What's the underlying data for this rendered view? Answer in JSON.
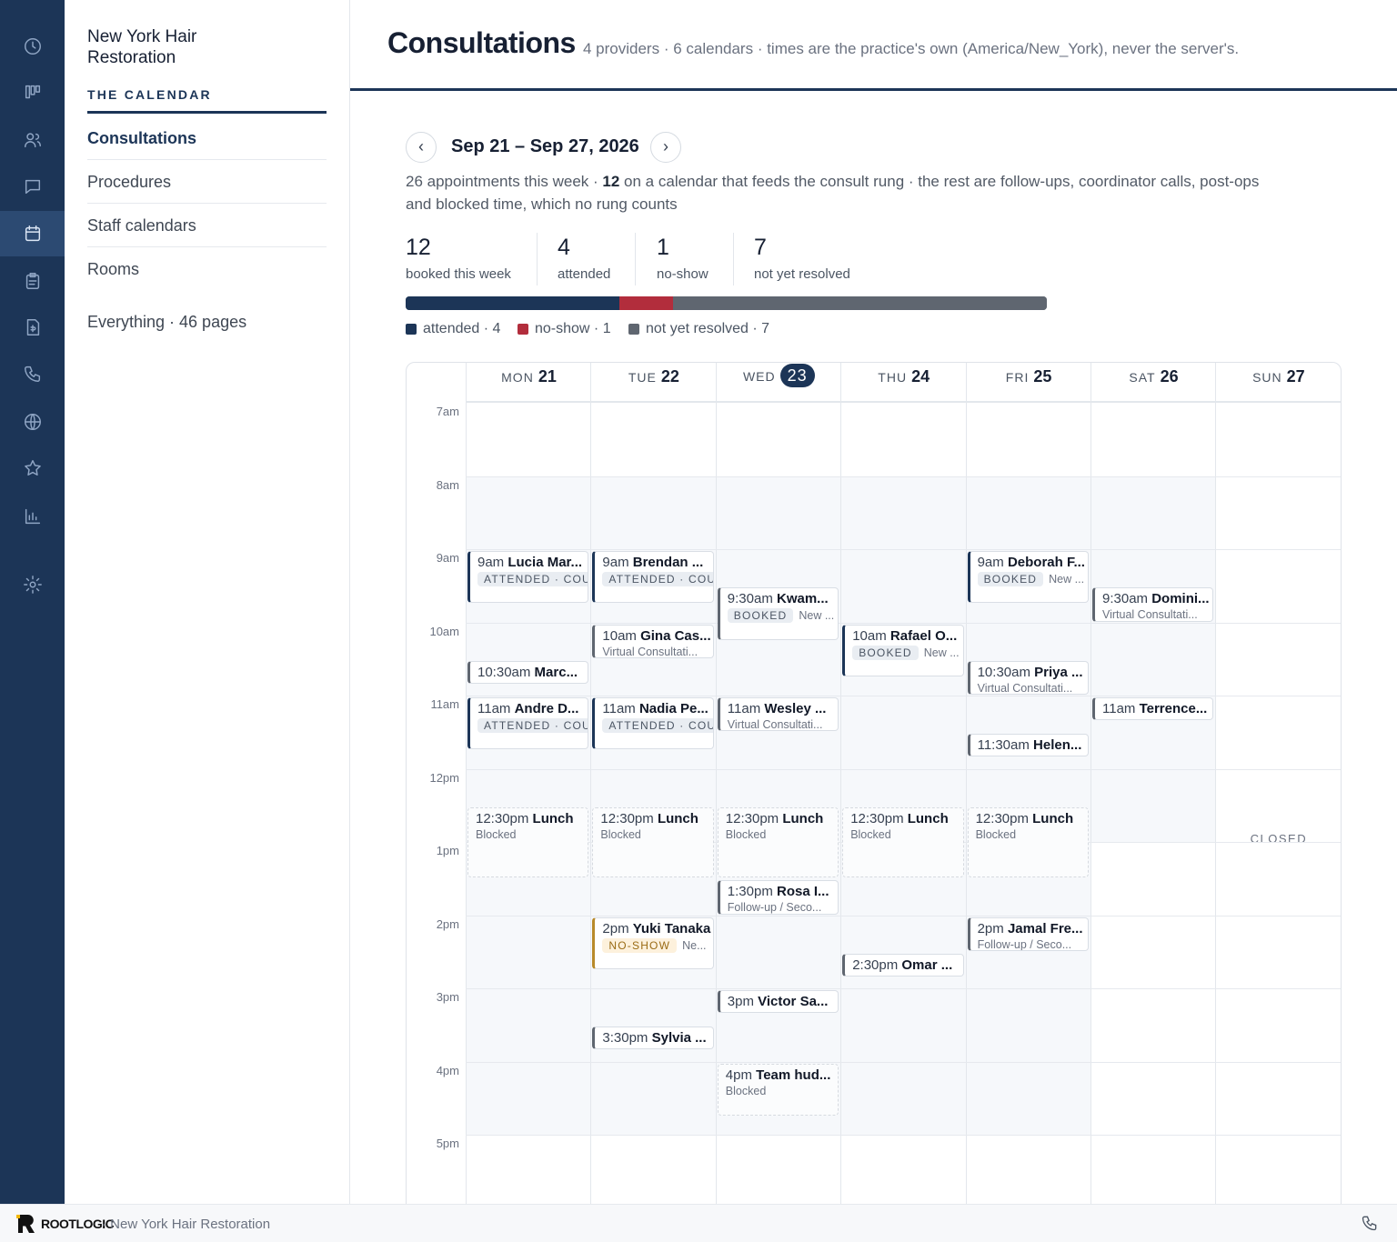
{
  "sidebar": {
    "org_name": "New York Hair Restoration",
    "section_label": "THE CALENDAR",
    "items": [
      {
        "label": "Consultations",
        "active": true
      },
      {
        "label": "Procedures"
      },
      {
        "label": "Staff calendars"
      },
      {
        "label": "Rooms"
      }
    ],
    "all_pages": "Everything · 46 pages"
  },
  "rail_icons": [
    "clock-icon",
    "kanban-icon",
    "users-icon",
    "chat-icon",
    "calendar-icon",
    "clipboard-icon",
    "invoice-icon",
    "phone-icon",
    "globe-icon",
    "star-icon",
    "chart-icon",
    "settings-icon"
  ],
  "header": {
    "title": "Consultations",
    "subtitle": "4 providers · 6 calendars · times are the practice's own (America/New_York), never the server's."
  },
  "week": {
    "prev": "‹",
    "next": "›",
    "range": "Sep 21 – Sep 27, 2026",
    "summary_a": "26 appointments this week · ",
    "summary_b": "12",
    "summary_c": " on a calendar that feeds the consult rung · the rest are follow-ups, coordinator calls, post-ops and blocked time, which no rung counts"
  },
  "stats": [
    {
      "value": "12",
      "label": "booked this week"
    },
    {
      "value": "4",
      "label": "attended"
    },
    {
      "value": "1",
      "label": "no-show"
    },
    {
      "value": "7",
      "label": "not yet resolved"
    }
  ],
  "progress": {
    "segments": [
      {
        "name": "attended",
        "count": 4,
        "color": "#1c3557"
      },
      {
        "name": "no-show",
        "count": 1,
        "color": "#b22d3c"
      },
      {
        "name": "not yet resolved",
        "count": 7,
        "color": "#5f6670"
      }
    ],
    "legend": [
      "attended · 4",
      "no-show · 1",
      "not yet resolved · 7"
    ]
  },
  "calendar": {
    "time_labels": [
      "7am",
      "8am",
      "9am",
      "10am",
      "11am",
      "12pm",
      "1pm",
      "2pm",
      "3pm",
      "4pm",
      "5pm"
    ],
    "days": [
      {
        "dow": "MON",
        "date": "21"
      },
      {
        "dow": "TUE",
        "date": "22"
      },
      {
        "dow": "WED",
        "date": "23",
        "today": true
      },
      {
        "dow": "THU",
        "date": "24"
      },
      {
        "dow": "FRI",
        "date": "25"
      },
      {
        "dow": "SAT",
        "date": "26"
      },
      {
        "dow": "SUN",
        "date": "27",
        "closed_label": "CLOSED"
      }
    ],
    "events": [
      {
        "day": 0,
        "start": 9,
        "end": 9.75,
        "time": "9am",
        "name": "Lucia Mar...",
        "badge": "ATTENDED · COUN",
        "style": "strong"
      },
      {
        "day": 0,
        "start": 10.5,
        "end": 10.85,
        "time": "10:30am",
        "name": "Marc...",
        "style": "plain"
      },
      {
        "day": 0,
        "start": 11,
        "end": 11.75,
        "time": "11am",
        "name": "Andre D...",
        "badge": "ATTENDED · COUN",
        "style": "strong"
      },
      {
        "day": 0,
        "start": 12.5,
        "end": 13.5,
        "time": "12:30pm",
        "name": "Lunch",
        "sub": "Blocked",
        "style": "blocked"
      },
      {
        "day": 1,
        "start": 9,
        "end": 9.75,
        "time": "9am",
        "name": "Brendan ...",
        "badge": "ATTENDED · COUN",
        "style": "strong"
      },
      {
        "day": 1,
        "start": 10,
        "end": 10.5,
        "time": "10am",
        "name": "Gina Cas...",
        "sub": "Virtual Consultati...",
        "style": "plain"
      },
      {
        "day": 1,
        "start": 11,
        "end": 11.75,
        "time": "11am",
        "name": "Nadia Pe...",
        "badge": "ATTENDED · COUN",
        "style": "strong"
      },
      {
        "day": 1,
        "start": 12.5,
        "end": 13.5,
        "time": "12:30pm",
        "name": "Lunch",
        "sub": "Blocked",
        "style": "blocked"
      },
      {
        "day": 1,
        "start": 14,
        "end": 14.75,
        "time": "2pm",
        "name": "Yuki Tanaka",
        "badge": "NO-SHOW",
        "extra": "Ne...",
        "style": "noshow"
      },
      {
        "day": 1,
        "start": 15.5,
        "end": 15.85,
        "time": "3:30pm",
        "name": "Sylvia ...",
        "style": "plain"
      },
      {
        "day": 2,
        "start": 9.5,
        "end": 10.25,
        "time": "9:30am",
        "name": "Kwam...",
        "badge": "BOOKED",
        "extra": "New ...",
        "style": "plain"
      },
      {
        "day": 2,
        "start": 11,
        "end": 11.5,
        "time": "11am",
        "name": "Wesley ...",
        "sub": "Virtual Consultati...",
        "style": "plain"
      },
      {
        "day": 2,
        "start": 12.5,
        "end": 13.5,
        "time": "12:30pm",
        "name": "Lunch",
        "sub": "Blocked",
        "style": "blocked"
      },
      {
        "day": 2,
        "start": 13.5,
        "end": 14,
        "time": "1:30pm",
        "name": "Rosa I...",
        "sub": "Follow-up / Seco...",
        "style": "plain"
      },
      {
        "day": 2,
        "start": 15,
        "end": 15.35,
        "time": "3pm",
        "name": "Victor Sa...",
        "style": "plain"
      },
      {
        "day": 2,
        "start": 16,
        "end": 16.75,
        "time": "4pm",
        "name": "Team hud...",
        "sub": "Blocked",
        "style": "blocked"
      },
      {
        "day": 3,
        "start": 10,
        "end": 10.75,
        "time": "10am",
        "name": "Rafael O...",
        "badge": "BOOKED",
        "extra": "New ...",
        "style": "strong"
      },
      {
        "day": 3,
        "start": 12.5,
        "end": 13.5,
        "time": "12:30pm",
        "name": "Lunch",
        "sub": "Blocked",
        "style": "blocked"
      },
      {
        "day": 3,
        "start": 14.5,
        "end": 14.85,
        "time": "2:30pm",
        "name": "Omar ...",
        "style": "plain"
      },
      {
        "day": 4,
        "start": 9,
        "end": 9.75,
        "time": "9am",
        "name": "Deborah F...",
        "badge": "BOOKED",
        "extra": "New ...",
        "style": "strong"
      },
      {
        "day": 4,
        "start": 10.5,
        "end": 11,
        "time": "10:30am",
        "name": "Priya ...",
        "sub": "Virtual Consultati...",
        "style": "plain"
      },
      {
        "day": 4,
        "start": 11.5,
        "end": 11.85,
        "time": "11:30am",
        "name": "Helen...",
        "style": "plain"
      },
      {
        "day": 4,
        "start": 12.5,
        "end": 13.5,
        "time": "12:30pm",
        "name": "Lunch",
        "sub": "Blocked",
        "style": "blocked"
      },
      {
        "day": 4,
        "start": 14,
        "end": 14.5,
        "time": "2pm",
        "name": "Jamal Fre...",
        "sub": "Follow-up / Seco...",
        "style": "plain"
      },
      {
        "day": 5,
        "start": 9.5,
        "end": 10,
        "time": "9:30am",
        "name": "Domini...",
        "sub": "Virtual Consultati...",
        "style": "plain"
      },
      {
        "day": 5,
        "start": 11,
        "end": 11.35,
        "time": "11am",
        "name": "Terrence...",
        "style": "plain"
      }
    ]
  },
  "footer": {
    "brand": "ROOTLOGIC",
    "org": "· New York Hair Restoration"
  }
}
